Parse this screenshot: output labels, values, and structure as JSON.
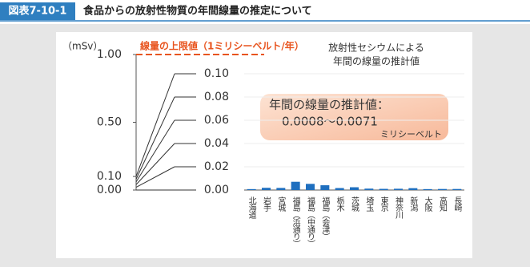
{
  "chart_data": {
    "type": "bar",
    "figure_label": "図表7-10-1",
    "title": "食品からの放射性物質の年間線量の推定について",
    "left_axis_label": "（mSv）",
    "left_ylim": [
      0,
      1
    ],
    "left_yticks": [
      {
        "value": 0,
        "label": "0.00"
      },
      {
        "value": 0.1,
        "label": "0.10"
      },
      {
        "value": 0.5,
        "label": "0.50"
      },
      {
        "value": 1,
        "label": "1.00"
      }
    ],
    "limit": {
      "value": 1,
      "label": "線量の上限値（1ミリシーベルト/年）",
      "color": "#e8541e"
    },
    "series_label": [
      "放射性セシウムによる",
      "年間の線量の推計値"
    ],
    "annotation": [
      "年間の線量の推計値：",
      "0.0008～0.0071",
      "ミリシーベルト"
    ],
    "categories": [
      "北海道",
      "岩手",
      "宮城",
      "福島（浜通り）",
      "福島（中通り）",
      "福島（会津）",
      "栃木",
      "茨城",
      "埼玉",
      "東京",
      "神奈川",
      "新潟",
      "大阪",
      "高知",
      "長崎"
    ],
    "values": [
      0.0008,
      0.0019,
      0.0018,
      0.0071,
      0.0053,
      0.0041,
      0.0017,
      0.0024,
      0.0012,
      0.001,
      0.0011,
      0.0016,
      0.0008,
      0.0009,
      0.0009
    ],
    "color": "#1f6fbf",
    "ylim": [
      0,
      0.1
    ],
    "yticks": [
      {
        "value": 0,
        "label": "0.00"
      },
      {
        "value": 0.02,
        "label": "0.02"
      },
      {
        "value": 0.04,
        "label": "0.04"
      },
      {
        "value": 0.06,
        "label": "0.06"
      },
      {
        "value": 0.08,
        "label": "0.08"
      },
      {
        "value": 0.1,
        "label": "0.10"
      }
    ]
  }
}
